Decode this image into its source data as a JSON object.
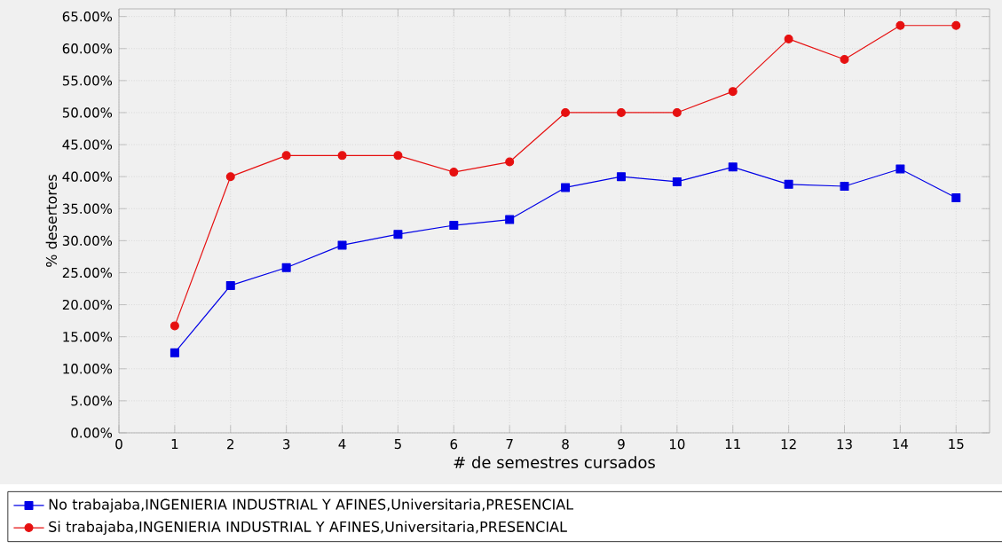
{
  "chart_data": {
    "type": "line",
    "xlabel": "# de semestres cursados",
    "ylabel": "% desertores",
    "x": [
      1,
      2,
      3,
      4,
      5,
      6,
      7,
      8,
      9,
      10,
      11,
      12,
      13,
      14,
      15
    ],
    "series": [
      {
        "name": "No trabajaba,INGENIERIA INDUSTRIAL Y AFINES,Universitaria,PRESENCIAL",
        "color": "#0000e6",
        "marker": "square",
        "values": [
          12.5,
          23.0,
          25.8,
          29.3,
          31.0,
          32.4,
          33.3,
          38.3,
          40.0,
          39.2,
          41.5,
          38.8,
          38.5,
          41.2,
          36.7
        ]
      },
      {
        "name": "Si trabajaba,INGENIERIA INDUSTRIAL Y AFINES,Universitaria,PRESENCIAL",
        "color": "#e61010",
        "marker": "circle",
        "values": [
          16.7,
          40.0,
          43.3,
          43.3,
          43.3,
          40.7,
          42.3,
          50.0,
          50.0,
          50.0,
          53.3,
          61.5,
          58.3,
          63.6,
          63.6
        ]
      }
    ],
    "xlim": [
      0,
      15.6
    ],
    "xticks": [
      0,
      1,
      2,
      3,
      4,
      5,
      6,
      7,
      8,
      9,
      10,
      11,
      12,
      13,
      14,
      15
    ],
    "ylim": [
      0,
      66.2
    ],
    "yticks": [
      {
        "value": 0,
        "label": "0.00%"
      },
      {
        "value": 5,
        "label": "5.00%"
      },
      {
        "value": 10,
        "label": "10.00%"
      },
      {
        "value": 15,
        "label": "15.00%"
      },
      {
        "value": 20,
        "label": "20.00%"
      },
      {
        "value": 25,
        "label": "25.00%"
      },
      {
        "value": 30,
        "label": "30.00%"
      },
      {
        "value": 35,
        "label": "35.00%"
      },
      {
        "value": 40,
        "label": "40.00%"
      },
      {
        "value": 45,
        "label": "45.00%"
      },
      {
        "value": 50,
        "label": "50.00%"
      },
      {
        "value": 55,
        "label": "55.00%"
      },
      {
        "value": 60,
        "label": "60.00%"
      },
      {
        "value": 65,
        "label": "65.00%"
      }
    ],
    "grid": true,
    "legend": "bottom",
    "line_style": "solid"
  }
}
